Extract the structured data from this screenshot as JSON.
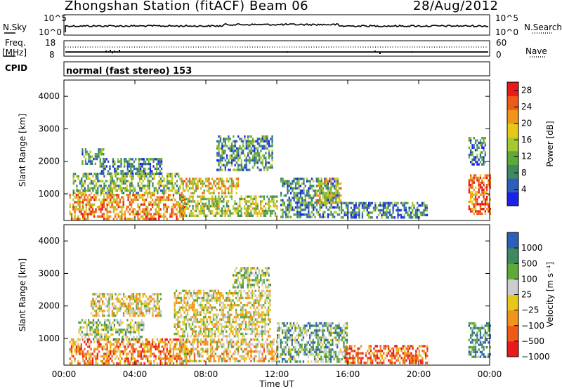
{
  "header": {
    "station": "Zhongshan Station (fitACF)",
    "beam": "Beam 06",
    "date": "28/Aug/2012"
  },
  "mini_panels": {
    "nsky_label": "N.Sky",
    "nsearch_label": "N.Search",
    "nsky_ticks": [
      "10^5",
      "10^0"
    ],
    "freq_label": "Freq.",
    "freq_unit": "[MHz]",
    "freq_ticks": [
      "18",
      "8"
    ],
    "nave_label": "Nave",
    "nave_ticks": [
      "60",
      "0"
    ],
    "cpid_label": "CPID",
    "cpid_value": "normal (fast stereo) 153"
  },
  "chart_data": [
    {
      "type": "heatmap",
      "title": "",
      "xlabel": "Time UT",
      "ylabel": "Slant Range [km]",
      "x_ticks": [
        "00:00",
        "04:00",
        "08:00",
        "12:00",
        "16:00",
        "20:00",
        "00:00"
      ],
      "x_range_hours": [
        0,
        24
      ],
      "y_ticks": [
        1000,
        2000,
        3000,
        4000
      ],
      "ylim": [
        180,
        4500
      ],
      "colorbar": {
        "label": "Power [dB]",
        "ticks": [
          "4",
          "8",
          "12",
          "16",
          "20",
          "24",
          "28"
        ],
        "range": [
          0,
          30
        ],
        "colors": [
          "#1a24e6",
          "#2e5fb8",
          "#3e8a5e",
          "#5fa83a",
          "#a8c830",
          "#e6c81a",
          "#f0941c",
          "#ee5a18",
          "#e81a1a"
        ]
      },
      "regions": [
        {
          "t0": 0.3,
          "t1": 6.8,
          "r0": 250,
          "r1": 1000,
          "level": 0.72
        },
        {
          "t0": 0.5,
          "t1": 6.5,
          "r0": 1000,
          "r1": 1650,
          "level": 0.4
        },
        {
          "t0": 1.0,
          "t1": 2.2,
          "r0": 1900,
          "r1": 2400,
          "level": 0.3
        },
        {
          "t0": 2.0,
          "t1": 5.5,
          "r0": 1600,
          "r1": 2100,
          "level": 0.25
        },
        {
          "t0": 6.5,
          "t1": 9.8,
          "r0": 1050,
          "r1": 1500,
          "level": 0.62
        },
        {
          "t0": 6.5,
          "t1": 12.0,
          "r0": 300,
          "r1": 950,
          "level": 0.48
        },
        {
          "t0": 8.6,
          "t1": 11.7,
          "r0": 1750,
          "r1": 2800,
          "level": 0.3
        },
        {
          "t0": 12.2,
          "t1": 15.5,
          "r0": 300,
          "r1": 1500,
          "level": 0.28
        },
        {
          "t0": 14.2,
          "t1": 15.6,
          "r0": 700,
          "r1": 1500,
          "level": 0.55
        },
        {
          "t0": 15.6,
          "t1": 20.5,
          "r0": 250,
          "r1": 750,
          "level": 0.28
        },
        {
          "t0": 22.8,
          "t1": 24.0,
          "r0": 400,
          "r1": 1600,
          "level": 0.82
        },
        {
          "t0": 22.8,
          "t1": 23.8,
          "r0": 1900,
          "r1": 2750,
          "level": 0.22
        }
      ]
    },
    {
      "type": "heatmap",
      "title": "",
      "xlabel": "Time UT",
      "ylabel": "Slant Range [km]",
      "x_ticks": [
        "00:00",
        "04:00",
        "08:00",
        "12:00",
        "16:00",
        "20:00",
        "00:00"
      ],
      "x_range_hours": [
        0,
        24
      ],
      "y_ticks": [
        1000,
        2000,
        3000,
        4000
      ],
      "ylim": [
        180,
        4500
      ],
      "colorbar": {
        "label": "Velocity [m s⁻¹]",
        "ticks": [
          "1000",
          "500",
          "100",
          "25",
          "−25",
          "−100",
          "−500",
          "−1000"
        ],
        "range": [
          -1000,
          1000
        ],
        "colors": [
          "#e81a1a",
          "#ee5a18",
          "#f0941c",
          "#e6c81a",
          "#cccccc",
          "#5fa83a",
          "#3e8a5e",
          "#2e5fb8"
        ]
      },
      "regions": [
        {
          "t0": 0.3,
          "t1": 7.0,
          "r0": 250,
          "r1": 1000,
          "level": 0.28
        },
        {
          "t0": 0.8,
          "t1": 4.5,
          "r0": 1000,
          "r1": 1600,
          "level": 0.62
        },
        {
          "t0": 1.5,
          "t1": 5.5,
          "r0": 1700,
          "r1": 2400,
          "level": 0.48
        },
        {
          "t0": 6.2,
          "t1": 11.6,
          "r0": 1100,
          "r1": 2500,
          "level": 0.5
        },
        {
          "t0": 6.5,
          "t1": 12.0,
          "r0": 300,
          "r1": 1000,
          "level": 0.42
        },
        {
          "t0": 9.5,
          "t1": 11.6,
          "r0": 2600,
          "r1": 3200,
          "level": 0.6
        },
        {
          "t0": 12.0,
          "t1": 16.0,
          "r0": 300,
          "r1": 1500,
          "level": 0.7
        },
        {
          "t0": 15.8,
          "t1": 20.5,
          "r0": 250,
          "r1": 800,
          "level": 0.2
        },
        {
          "t0": 22.8,
          "t1": 24.0,
          "r0": 400,
          "r1": 1500,
          "level": 0.78
        }
      ]
    }
  ]
}
